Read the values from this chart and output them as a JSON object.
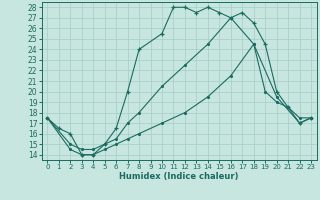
{
  "xlabel": "Humidex (Indice chaleur)",
  "bg_color": "#c8e6e0",
  "grid_color": "#a8ccc8",
  "line_color": "#1a6b60",
  "xlim": [
    -0.5,
    23.5
  ],
  "ylim": [
    13.5,
    28.5
  ],
  "xticks": [
    0,
    1,
    2,
    3,
    4,
    5,
    6,
    7,
    8,
    9,
    10,
    11,
    12,
    13,
    14,
    15,
    16,
    17,
    18,
    19,
    20,
    21,
    22,
    23
  ],
  "yticks": [
    14,
    15,
    16,
    17,
    18,
    19,
    20,
    21,
    22,
    23,
    24,
    25,
    26,
    27,
    28
  ],
  "line1_x": [
    0,
    1,
    2,
    3,
    4,
    5,
    6,
    7,
    8,
    10,
    11,
    12,
    13,
    14,
    15,
    16,
    17,
    18,
    19,
    20,
    21,
    22,
    23
  ],
  "line1_y": [
    17.5,
    16.5,
    16.0,
    14.0,
    14.0,
    15.0,
    16.5,
    20.0,
    24.0,
    25.5,
    28.0,
    28.0,
    27.5,
    28.0,
    27.5,
    27.0,
    27.5,
    26.5,
    24.5,
    20.0,
    18.5,
    17.0,
    17.5
  ],
  "line2_x": [
    0,
    2,
    3,
    4,
    5,
    6,
    7,
    8,
    10,
    12,
    14,
    16,
    18,
    19,
    20,
    21,
    22,
    23
  ],
  "line2_y": [
    17.5,
    15.0,
    14.5,
    14.5,
    15.0,
    15.5,
    17.0,
    18.0,
    20.5,
    22.5,
    24.5,
    27.0,
    24.5,
    20.0,
    19.0,
    18.5,
    17.5,
    17.5
  ],
  "line3_x": [
    0,
    2,
    3,
    4,
    5,
    6,
    7,
    8,
    10,
    12,
    14,
    16,
    18,
    20,
    22,
    23
  ],
  "line3_y": [
    17.5,
    14.5,
    14.0,
    14.0,
    14.5,
    15.0,
    15.5,
    16.0,
    17.0,
    18.0,
    19.5,
    21.5,
    24.5,
    19.5,
    17.0,
    17.5
  ]
}
